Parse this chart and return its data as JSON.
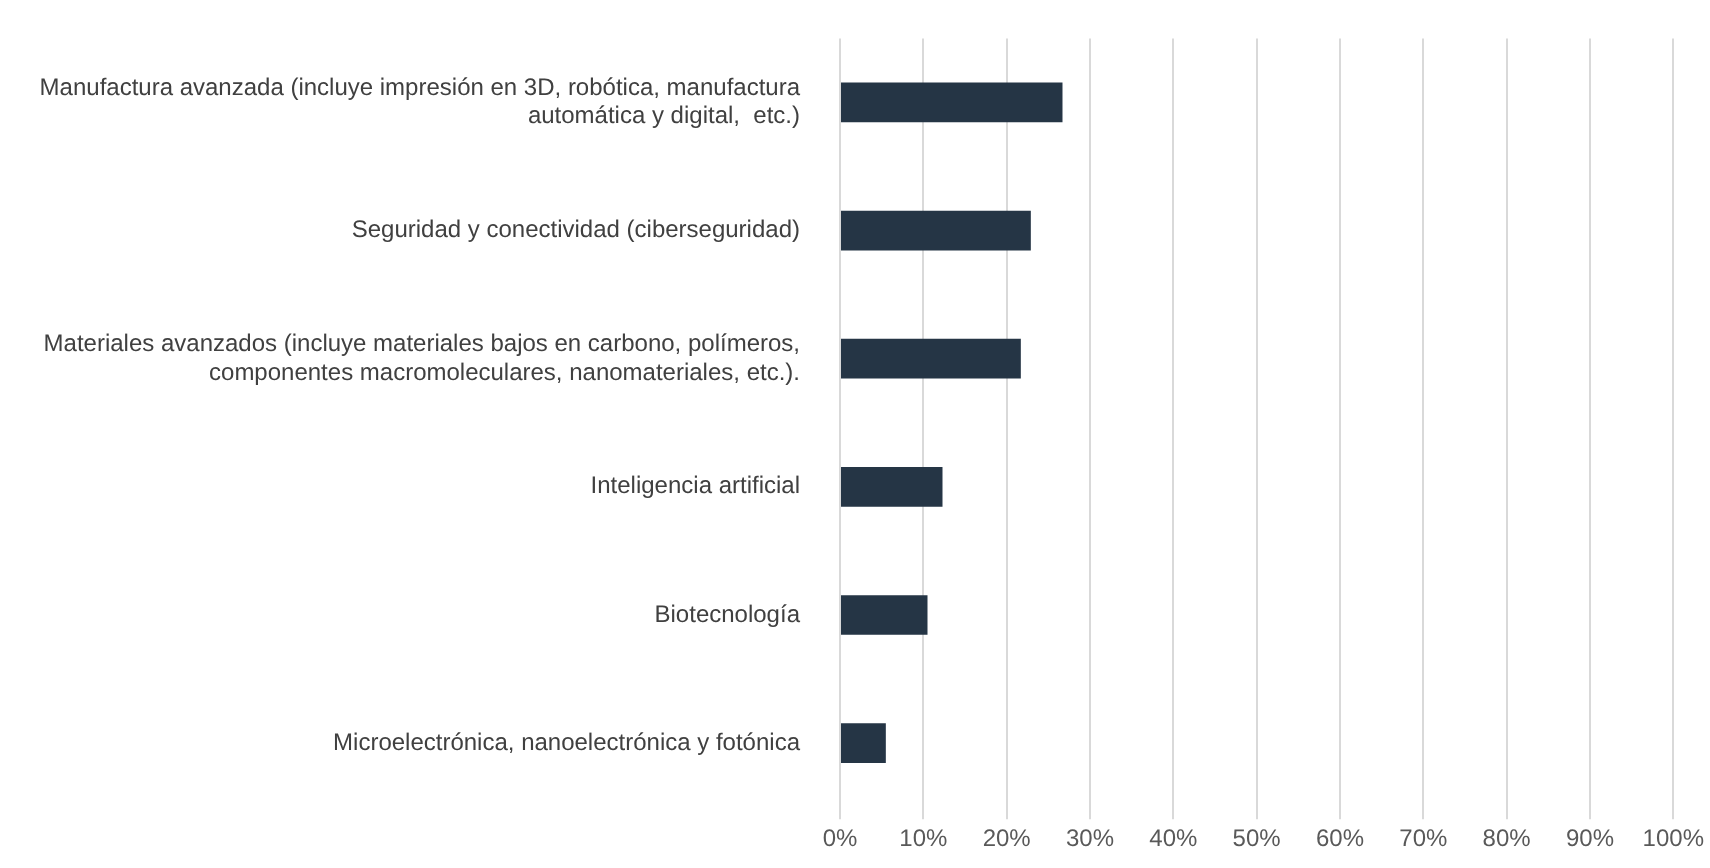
{
  "chart_data": {
    "type": "bar",
    "orientation": "horizontal",
    "categories": [
      "Manufactura avanzada (incluye impresión en 3D, robótica, manufactura automática y digital,  etc.)",
      "Seguridad y conectividad (ciberseguridad)",
      "Materiales avanzados (incluye materiales bajos en carbono, polímeros, componentes macromoleculares, nanomateriales, etc.).",
      "Inteligencia artificial",
      "Biotecnología",
      "Microelectrónica, nanoelectrónica y fotónica"
    ],
    "values": [
      26.7,
      22.9,
      21.7,
      12.3,
      10.5,
      5.5
    ],
    "color": "#253545",
    "xlim": [
      0,
      100
    ],
    "xticks": [
      {
        "value": 0,
        "label": "0%"
      },
      {
        "value": 10,
        "label": "10%"
      },
      {
        "value": 20,
        "label": "20%"
      },
      {
        "value": 30,
        "label": "30%"
      },
      {
        "value": 40,
        "label": "40%"
      },
      {
        "value": 50,
        "label": "50%"
      },
      {
        "value": 60,
        "label": "60%"
      },
      {
        "value": 70,
        "label": "70%"
      },
      {
        "value": 80,
        "label": "80%"
      },
      {
        "value": 90,
        "label": "90%"
      },
      {
        "value": 100,
        "label": "100%"
      }
    ],
    "grid": "x",
    "legend": false
  }
}
